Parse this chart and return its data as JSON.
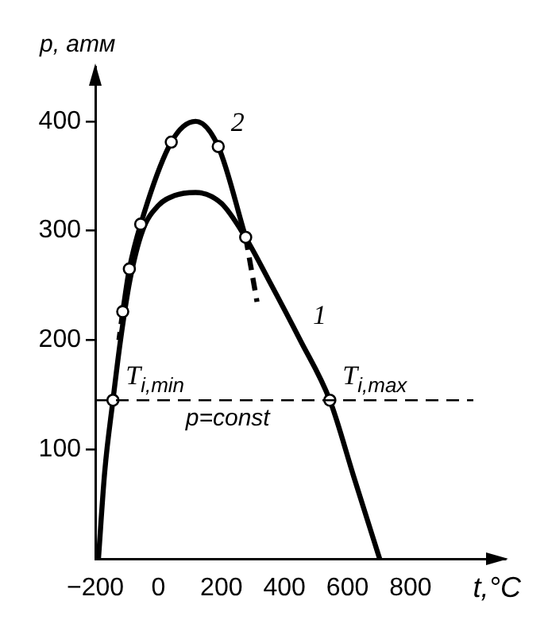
{
  "chart_data": {
    "type": "line",
    "xlabel": "t,°C",
    "ylabel": "p, атм",
    "xlim": [
      -200,
      1100
    ],
    "ylim": [
      0,
      450
    ],
    "xticks": [
      -200,
      0,
      200,
      400,
      600,
      800
    ],
    "yticks": [
      100,
      200,
      300,
      400
    ],
    "grid": false,
    "legend": false,
    "line_style": "solid",
    "series": [
      {
        "color": "#000000",
        "marker": "none",
        "x": [
          -190,
          -170,
          -144,
          -120,
          -90,
          -50,
          0,
          50,
          118,
          200,
          272,
          350,
          450,
          544,
          620,
          702
        ],
        "values": [
          0,
          80,
          145,
          200,
          255,
          300,
          323,
          332,
          335,
          325,
          296,
          255,
          200,
          145,
          75,
          0
        ]
      },
      {
        "color": "#000000",
        "marker": "none",
        "x": [
          -113,
          -92,
          -56,
          41,
          118,
          190,
          277
        ],
        "values": [
          226,
          265,
          306,
          381,
          400,
          377,
          294
        ]
      },
      {
        "type": "scatter",
        "color": "#000000",
        "marker": "circle",
        "x": [
          -113,
          -92,
          -56,
          41,
          190,
          277,
          -144,
          544
        ],
        "values": [
          226,
          265,
          306,
          381,
          377,
          294,
          145,
          145
        ]
      },
      {
        "color": "#000000",
        "marker": "none",
        "line_style": "dashed",
        "x": [
          -113,
          -125
        ],
        "values": [
          226,
          200
        ]
      },
      {
        "color": "#000000",
        "marker": "none",
        "line_style": "dashed",
        "x": [
          277,
          313
        ],
        "values": [
          294,
          235
        ]
      }
    ],
    "ref_lines": [
      {
        "axis": "y",
        "value": 145,
        "label": "p=const",
        "line_style": "dashed"
      }
    ],
    "annotations": [
      {
        "text": "T$_{i,min}$",
        "x": -144,
        "y": 145
      },
      {
        "text": "T$_{i,max}$",
        "x": 544,
        "y": 145
      },
      {
        "text": "1",
        "x": 450,
        "y": 200
      },
      {
        "text": "2",
        "x": 190,
        "y": 377
      }
    ]
  }
}
